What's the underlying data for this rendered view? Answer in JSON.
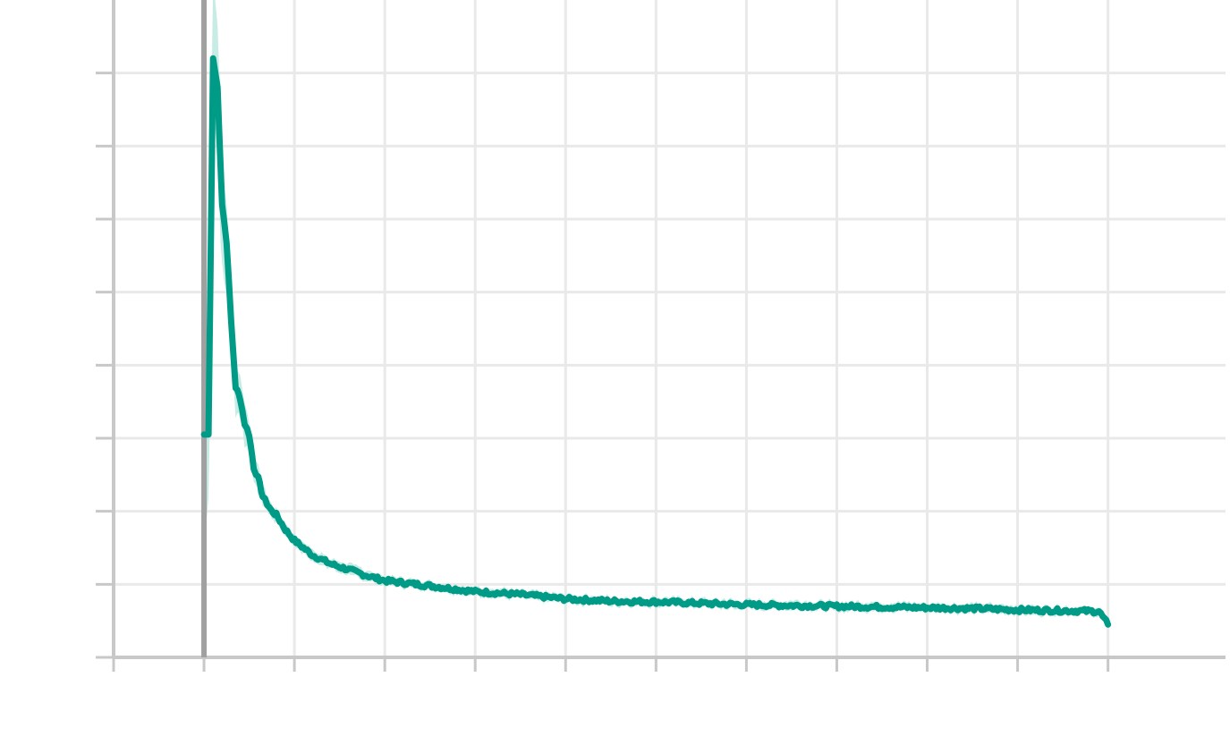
{
  "chart_data": {
    "type": "line",
    "title": "",
    "xlabel": "",
    "ylabel": "",
    "grid": true,
    "xlim": [
      -1,
      11.3
    ],
    "ylim": [
      0,
      9
    ],
    "x_ticks": [
      -1,
      0,
      1,
      2,
      3,
      4,
      5,
      6,
      7,
      8,
      9,
      10
    ],
    "y_ticks": [
      0,
      1,
      2,
      3,
      4,
      5,
      6,
      7,
      8
    ],
    "vline_x": 0,
    "series": [
      {
        "x": [
          0,
          0.05,
          0.1,
          0.15,
          0.2,
          0.25,
          0.3,
          0.35,
          0.4,
          0.45,
          0.5,
          0.55,
          0.6,
          0.65,
          0.7,
          0.75,
          0.8,
          0.9,
          1.0,
          1.2,
          1.4,
          1.6,
          1.8,
          2.0,
          2.5,
          3.0,
          3.5,
          4.0,
          4.5,
          5.0,
          5.5,
          6.0,
          6.5,
          7.0,
          7.5,
          8.0,
          8.5,
          9.0,
          9.5,
          9.9,
          10.0
        ],
        "y": [
          3.05,
          3.05,
          8.2,
          7.8,
          6.2,
          5.7,
          4.6,
          3.7,
          3.55,
          3.2,
          3.05,
          2.6,
          2.45,
          2.2,
          2.1,
          2.0,
          1.95,
          1.75,
          1.6,
          1.4,
          1.28,
          1.2,
          1.12,
          1.05,
          0.98,
          0.9,
          0.86,
          0.8,
          0.77,
          0.76,
          0.74,
          0.72,
          0.71,
          0.7,
          0.69,
          0.68,
          0.67,
          0.65,
          0.64,
          0.63,
          0.45
        ],
        "band": [
          1.2,
          1.2,
          1.1,
          1.0,
          0.8,
          0.6,
          0.45,
          0.35,
          0.3,
          0.25,
          0.2,
          0.18,
          0.15,
          0.12,
          0.1,
          0.1,
          0.09,
          0.08,
          0.08,
          0.08,
          0.07,
          0.07,
          0.07,
          0.06,
          0.06,
          0.06,
          0.06,
          0.06,
          0.06,
          0.06,
          0.06,
          0.06,
          0.06,
          0.06,
          0.06,
          0.06,
          0.06,
          0.06,
          0.06,
          0.06,
          0.05
        ]
      }
    ]
  },
  "colors": {
    "line": "#009b87",
    "band": "#b9e6de",
    "grid": "#e9e9e9",
    "axis": "#c8c8c8",
    "vline": "#a0a0a0"
  }
}
